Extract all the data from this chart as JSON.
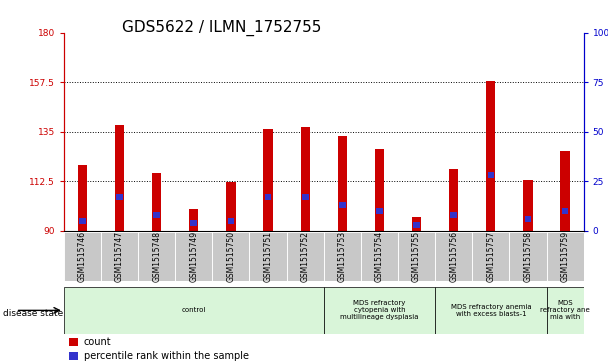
{
  "title": "GDS5622 / ILMN_1752755",
  "samples": [
    "GSM1515746",
    "GSM1515747",
    "GSM1515748",
    "GSM1515749",
    "GSM1515750",
    "GSM1515751",
    "GSM1515752",
    "GSM1515753",
    "GSM1515754",
    "GSM1515755",
    "GSM1515756",
    "GSM1515757",
    "GSM1515758",
    "GSM1515759"
  ],
  "count_values": [
    120,
    138,
    116,
    100,
    112,
    136,
    137,
    133,
    127,
    96,
    118,
    158,
    113,
    126
  ],
  "percentile_values": [
    5,
    17,
    8,
    4,
    5,
    17,
    17,
    13,
    10,
    3,
    8,
    28,
    6,
    10
  ],
  "ymin": 90,
  "ymax": 180,
  "yticks_left": [
    90,
    112.5,
    135,
    157.5,
    180
  ],
  "yticks_right": [
    0,
    25,
    50,
    75,
    100
  ],
  "bar_color": "#cc0000",
  "percentile_color": "#3333cc",
  "grid_color": "#555555",
  "title_fontsize": 11,
  "tick_fontsize": 6.5,
  "bar_width": 0.25,
  "pct_bar_width": 0.18,
  "disease_groups": [
    {
      "label": "control",
      "start": 0,
      "end": 7,
      "color": "#d9f5d9"
    },
    {
      "label": "MDS refractory\ncytopenia with\nmultilineage dysplasia",
      "start": 7,
      "end": 10,
      "color": "#d9f5d9"
    },
    {
      "label": "MDS refractory anemia\nwith excess blasts-1",
      "start": 10,
      "end": 13,
      "color": "#d9f5d9"
    },
    {
      "label": "MDS\nrefractory ane\nmia with",
      "start": 13,
      "end": 14,
      "color": "#d9f5d9"
    }
  ],
  "legend_count_label": "count",
  "legend_percentile_label": "percentile rank within the sample",
  "disease_state_label": "disease state",
  "bar_color_red": "#cc0000",
  "bar_color_blue": "#3333cc",
  "ylabel_right_color": "#0000cc",
  "ylabel_left_color": "#cc0000",
  "xticklabel_bg": "#c8c8c8"
}
